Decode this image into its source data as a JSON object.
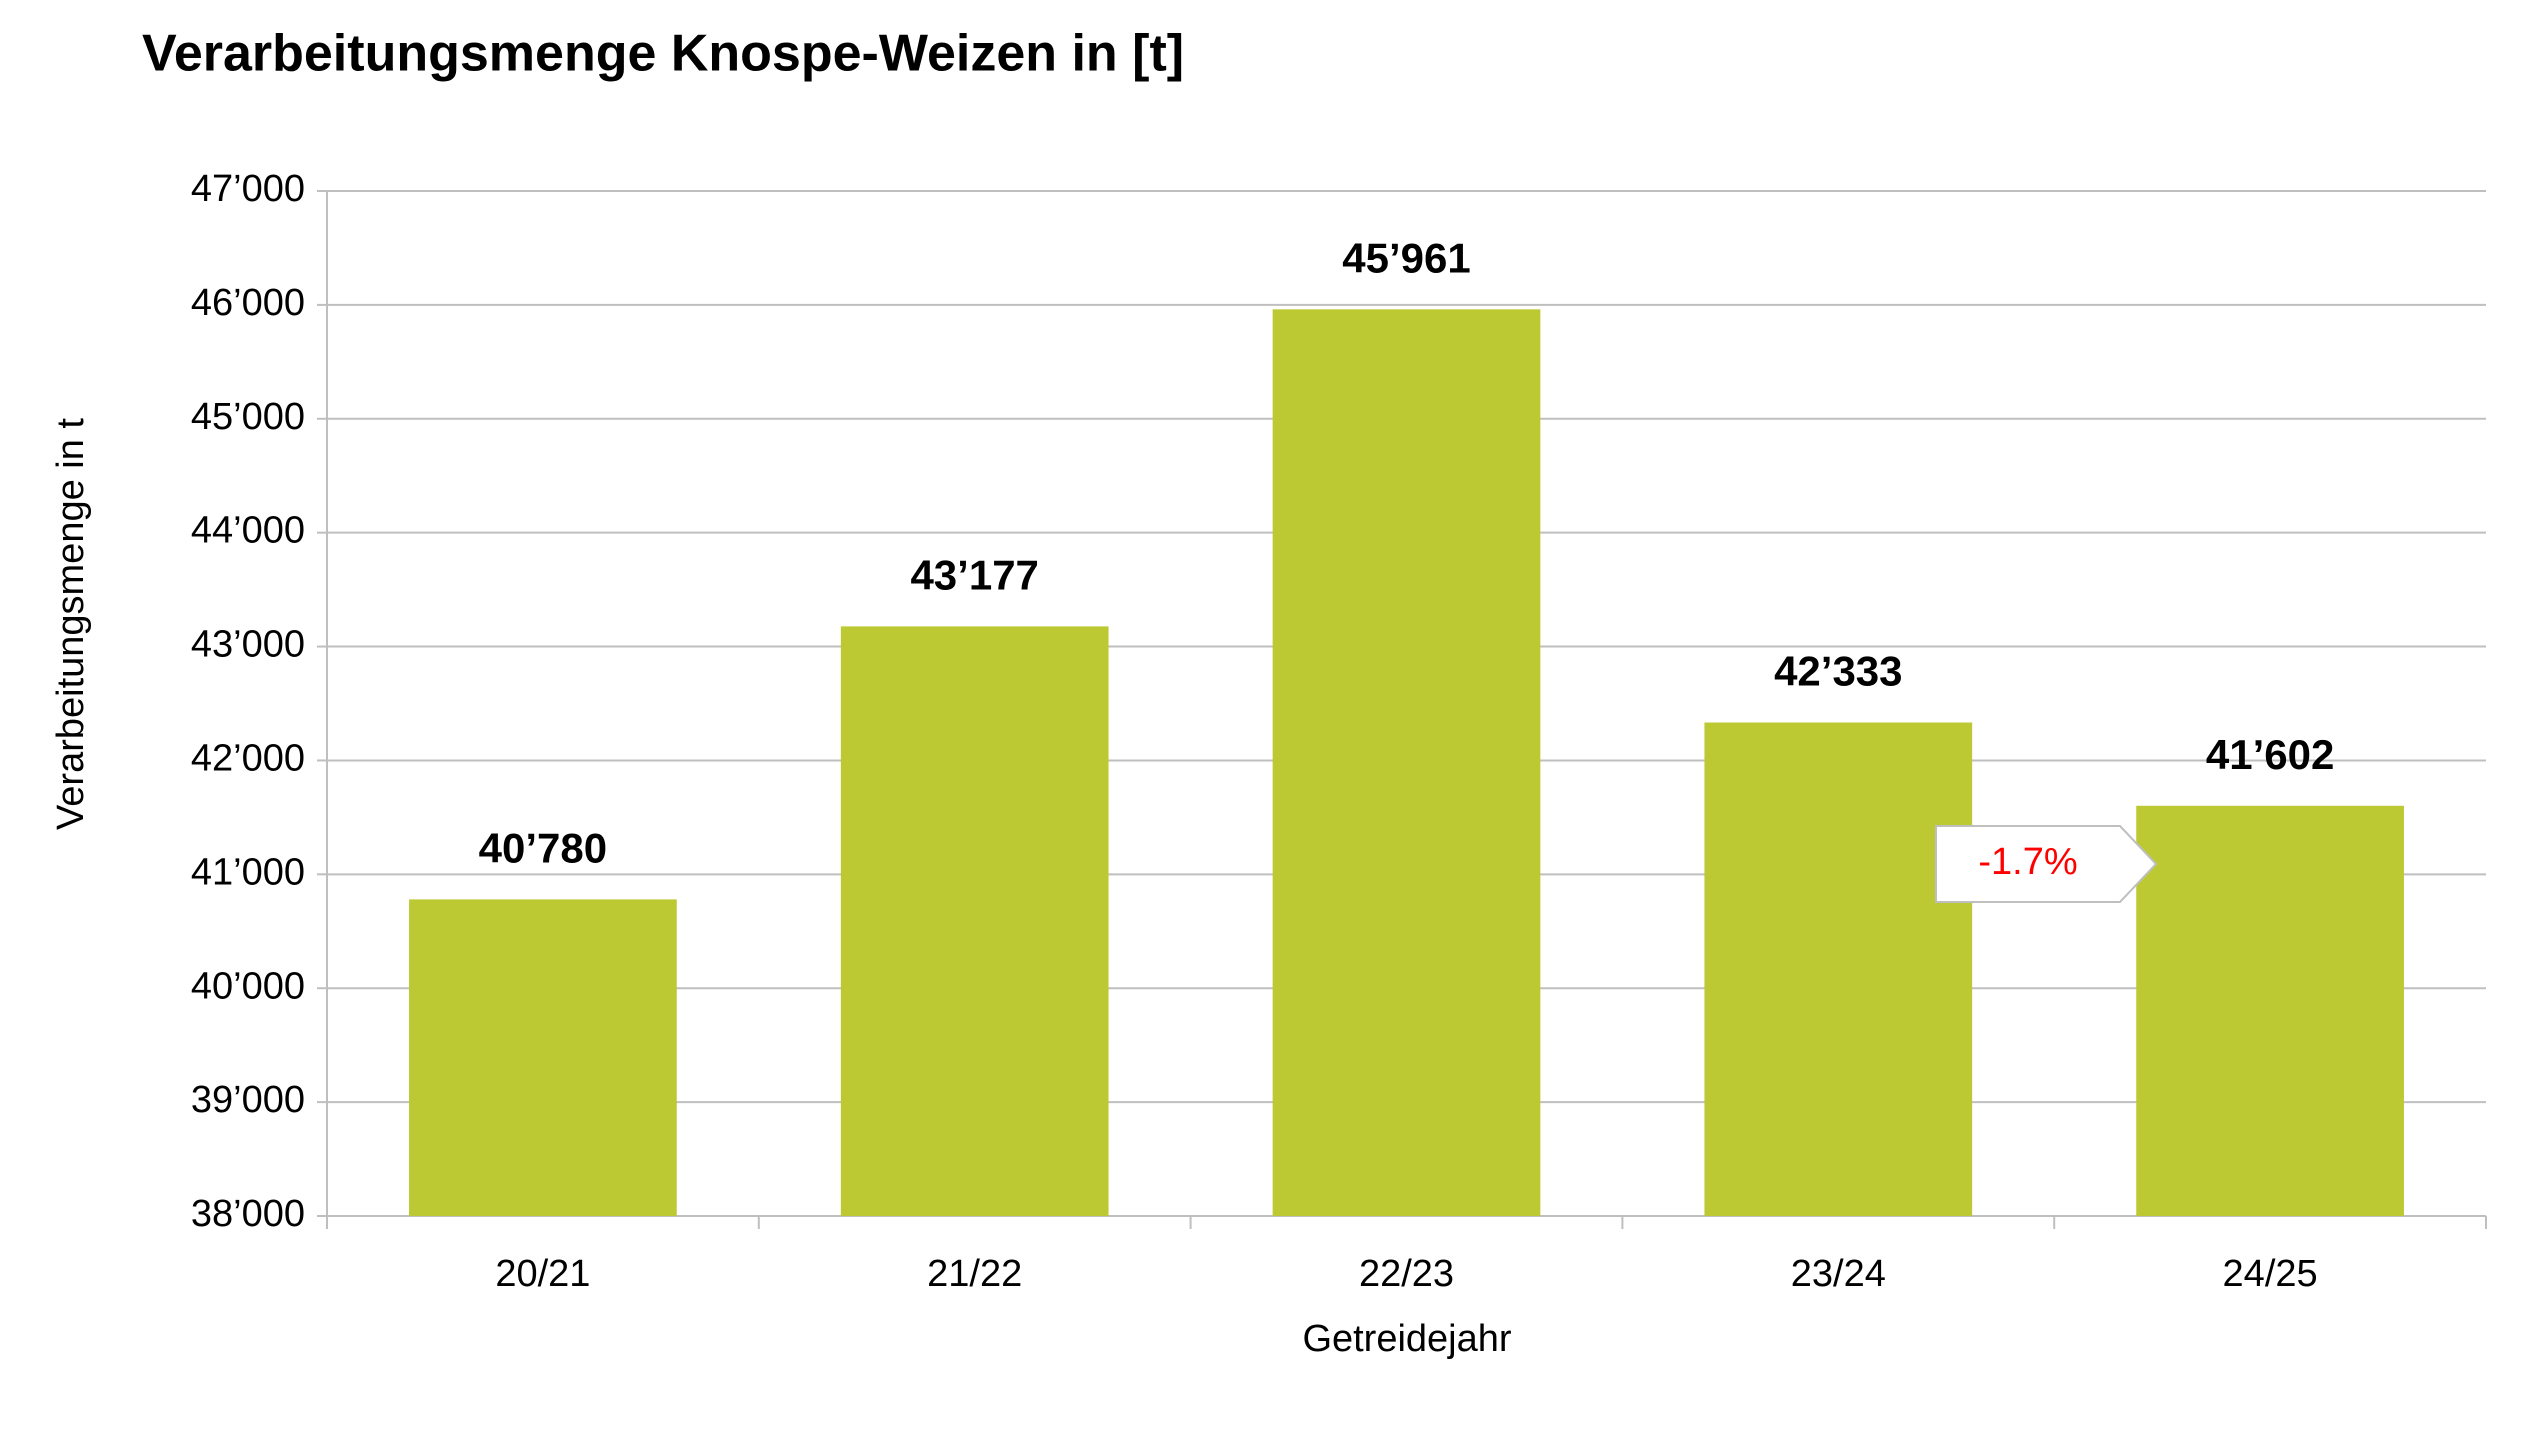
{
  "chart_data": {
    "type": "bar",
    "title": "Verarbeitungsmenge Knospe-Weizen in [t]",
    "x_label": "Getreidejahr",
    "y_label": "Verarbeitungsmenge in t",
    "categories": [
      "20/21",
      "21/22",
      "22/23",
      "23/24",
      "24/25"
    ],
    "values": [
      40780,
      43177,
      45961,
      42333,
      41602
    ],
    "value_labels": [
      "40’780",
      "43’177",
      "45’961",
      "42’333",
      "41’602"
    ],
    "color": "#bcc932",
    "ylim": [
      38000,
      47000
    ],
    "yticks": [
      {
        "value": 38000,
        "label": "38’000"
      },
      {
        "value": 39000,
        "label": "39’000"
      },
      {
        "value": 40000,
        "label": "40’000"
      },
      {
        "value": 41000,
        "label": "41’000"
      },
      {
        "value": 42000,
        "label": "42’000"
      },
      {
        "value": 43000,
        "label": "43’000"
      },
      {
        "value": 44000,
        "label": "44’000"
      },
      {
        "value": 45000,
        "label": "45’000"
      },
      {
        "value": 46000,
        "label": "46’000"
      },
      {
        "value": 47000,
        "label": "47’000"
      }
    ],
    "grid": true,
    "annotations": [
      {
        "text": "-1.7%",
        "color": "#ff0000"
      }
    ]
  }
}
